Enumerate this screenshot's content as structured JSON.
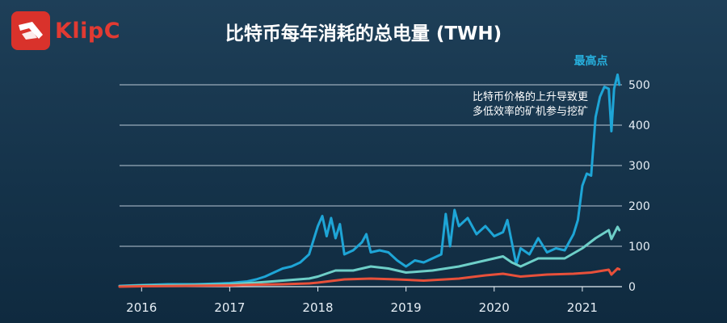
{
  "brand": {
    "name": "KlipC",
    "accent": "#d9322b"
  },
  "chart_data": {
    "type": "line",
    "title": "比特币每年消耗的总电量 (TWH)",
    "xlabel": "",
    "ylabel": "",
    "x_ticks": [
      "2016",
      "2017",
      "2018",
      "2019",
      "2020",
      "2021"
    ],
    "y_ticks": [
      "0",
      "100",
      "200",
      "300",
      "400",
      "500"
    ],
    "xlim": [
      2015.75,
      2021.45
    ],
    "ylim": [
      0,
      520
    ],
    "grid": "horizontal",
    "annotations": [
      {
        "id": "peak",
        "text": "最高点",
        "x": 2021.4,
        "y": 525
      },
      {
        "id": "note",
        "lines": [
          "比特币价格的上升导致更",
          "多低效率的矿机参与挖矿"
        ]
      }
    ],
    "series": [
      {
        "color": "#1ea5d6",
        "points": [
          [
            2015.75,
            2
          ],
          [
            2016.0,
            4
          ],
          [
            2016.3,
            6
          ],
          [
            2016.6,
            6
          ],
          [
            2016.9,
            8
          ],
          [
            2017.0,
            9
          ],
          [
            2017.2,
            13
          ],
          [
            2017.3,
            18
          ],
          [
            2017.4,
            25
          ],
          [
            2017.5,
            35
          ],
          [
            2017.6,
            45
          ],
          [
            2017.7,
            50
          ],
          [
            2017.8,
            60
          ],
          [
            2017.9,
            80
          ],
          [
            2018.0,
            150
          ],
          [
            2018.05,
            175
          ],
          [
            2018.1,
            125
          ],
          [
            2018.15,
            170
          ],
          [
            2018.2,
            120
          ],
          [
            2018.25,
            155
          ],
          [
            2018.3,
            80
          ],
          [
            2018.4,
            90
          ],
          [
            2018.5,
            110
          ],
          [
            2018.55,
            130
          ],
          [
            2018.6,
            85
          ],
          [
            2018.7,
            90
          ],
          [
            2018.8,
            85
          ],
          [
            2018.9,
            65
          ],
          [
            2019.0,
            50
          ],
          [
            2019.1,
            65
          ],
          [
            2019.2,
            60
          ],
          [
            2019.3,
            70
          ],
          [
            2019.4,
            80
          ],
          [
            2019.45,
            180
          ],
          [
            2019.5,
            100
          ],
          [
            2019.55,
            190
          ],
          [
            2019.6,
            150
          ],
          [
            2019.7,
            170
          ],
          [
            2019.8,
            130
          ],
          [
            2019.9,
            150
          ],
          [
            2020.0,
            125
          ],
          [
            2020.1,
            135
          ],
          [
            2020.15,
            165
          ],
          [
            2020.2,
            110
          ],
          [
            2020.25,
            55
          ],
          [
            2020.3,
            95
          ],
          [
            2020.4,
            80
          ],
          [
            2020.5,
            120
          ],
          [
            2020.6,
            85
          ],
          [
            2020.7,
            95
          ],
          [
            2020.8,
            90
          ],
          [
            2020.85,
            110
          ],
          [
            2020.9,
            130
          ],
          [
            2020.95,
            165
          ],
          [
            2021.0,
            250
          ],
          [
            2021.05,
            280
          ],
          [
            2021.1,
            275
          ],
          [
            2021.15,
            420
          ],
          [
            2021.2,
            470
          ],
          [
            2021.25,
            495
          ],
          [
            2021.3,
            490
          ],
          [
            2021.33,
            385
          ],
          [
            2021.36,
            490
          ],
          [
            2021.4,
            525
          ],
          [
            2021.42,
            500
          ]
        ]
      },
      {
        "color": "#6ecfc8",
        "points": [
          [
            2015.75,
            1
          ],
          [
            2016.0,
            3
          ],
          [
            2016.5,
            4
          ],
          [
            2017.0,
            6
          ],
          [
            2017.3,
            10
          ],
          [
            2017.6,
            15
          ],
          [
            2017.9,
            20
          ],
          [
            2018.0,
            25
          ],
          [
            2018.2,
            40
          ],
          [
            2018.4,
            40
          ],
          [
            2018.6,
            50
          ],
          [
            2018.8,
            45
          ],
          [
            2019.0,
            35
          ],
          [
            2019.3,
            40
          ],
          [
            2019.6,
            50
          ],
          [
            2019.9,
            65
          ],
          [
            2020.1,
            75
          ],
          [
            2020.2,
            60
          ],
          [
            2020.3,
            50
          ],
          [
            2020.5,
            70
          ],
          [
            2020.8,
            70
          ],
          [
            2021.0,
            95
          ],
          [
            2021.15,
            120
          ],
          [
            2021.3,
            140
          ],
          [
            2021.33,
            118
          ],
          [
            2021.4,
            148
          ],
          [
            2021.42,
            140
          ]
        ]
      },
      {
        "color": "#e8503a",
        "points": [
          [
            2015.75,
            0
          ],
          [
            2016.0,
            1
          ],
          [
            2016.5,
            2
          ],
          [
            2017.0,
            3
          ],
          [
            2017.3,
            5
          ],
          [
            2017.6,
            6
          ],
          [
            2017.9,
            8
          ],
          [
            2018.0,
            10
          ],
          [
            2018.3,
            18
          ],
          [
            2018.6,
            20
          ],
          [
            2018.9,
            18
          ],
          [
            2019.2,
            15
          ],
          [
            2019.6,
            20
          ],
          [
            2019.9,
            28
          ],
          [
            2020.1,
            32
          ],
          [
            2020.3,
            25
          ],
          [
            2020.6,
            30
          ],
          [
            2020.9,
            32
          ],
          [
            2021.1,
            35
          ],
          [
            2021.3,
            42
          ],
          [
            2021.33,
            30
          ],
          [
            2021.4,
            45
          ],
          [
            2021.42,
            43
          ]
        ]
      }
    ]
  }
}
